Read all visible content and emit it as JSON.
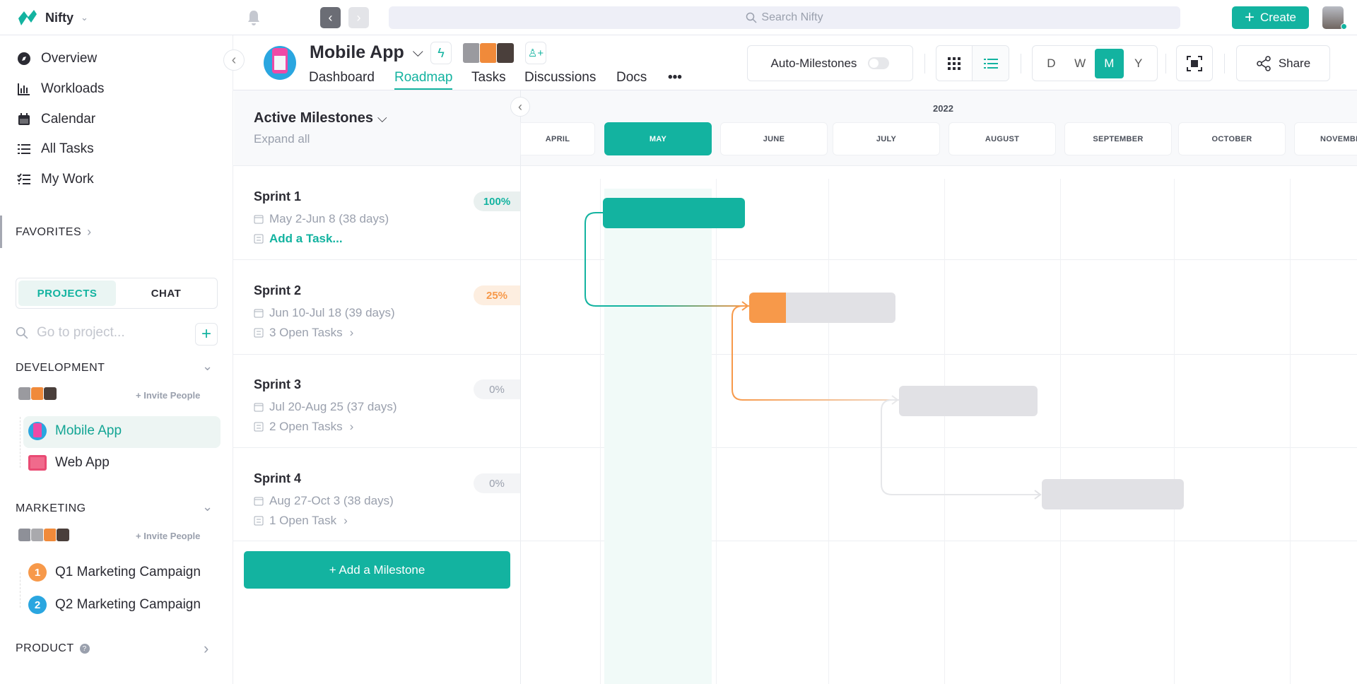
{
  "app": {
    "name": "Nifty",
    "search_placeholder": "Search Nifty",
    "create_label": "Create"
  },
  "colors": {
    "accent": "#13b3a0",
    "orange": "#f7994a",
    "gray_bar": "#e1e1e5",
    "blue": "#2aa6e0"
  },
  "sidebar": {
    "nav": [
      {
        "label": "Overview",
        "icon": "compass-icon"
      },
      {
        "label": "Workloads",
        "icon": "bar-chart-icon"
      },
      {
        "label": "Calendar",
        "icon": "calendar-icon"
      },
      {
        "label": "All Tasks",
        "icon": "list-icon"
      },
      {
        "label": "My Work",
        "icon": "checklist-icon"
      }
    ],
    "favorites": "FAVORITES",
    "tabs": {
      "projects": "PROJECTS",
      "chat": "CHAT"
    },
    "search_placeholder": "Go to project...",
    "groups": [
      {
        "name": "DEVELOPMENT",
        "invite": "+ Invite People",
        "projects": [
          {
            "label": "Mobile App",
            "active": true
          },
          {
            "label": "Web App"
          }
        ]
      },
      {
        "name": "MARKETING",
        "invite": "+ Invite People",
        "projects": [
          {
            "label": "Q1 Marketing Campaign",
            "num": "1"
          },
          {
            "label": "Q2 Marketing Campaign",
            "num": "2"
          }
        ]
      },
      {
        "name": "PRODUCT"
      }
    ]
  },
  "project": {
    "title": "Mobile App",
    "tabs": [
      "Dashboard",
      "Roadmap",
      "Tasks",
      "Discussions",
      "Docs",
      "•••"
    ],
    "active_tab": "Roadmap"
  },
  "toolbar": {
    "auto_milestones": "Auto-Milestones",
    "auto_milestones_on": false,
    "scales": [
      "D",
      "W",
      "M",
      "Y"
    ],
    "active_scale": "M",
    "share": "Share"
  },
  "milestones_panel": {
    "title": "Active Milestones",
    "expand_all": "Expand all",
    "add_milestone": "+ Add a Milestone",
    "items": [
      {
        "name": "Sprint 1",
        "dates": "May 2-Jun 8 (38 days)",
        "tasks": "Add a Task...",
        "progress": "100%",
        "progress_value": 100
      },
      {
        "name": "Sprint 2",
        "dates": "Jun 10-Jul 18 (39 days)",
        "tasks": "3 Open Tasks",
        "progress": "25%",
        "progress_value": 25
      },
      {
        "name": "Sprint 3",
        "dates": "Jul 20-Aug 25 (37 days)",
        "tasks": "2 Open Tasks",
        "progress": "0%",
        "progress_value": 0
      },
      {
        "name": "Sprint 4",
        "dates": "Aug 27-Oct 3 (38 days)",
        "tasks": "1 Open Task",
        "progress": "0%",
        "progress_value": 0
      }
    ]
  },
  "timeline": {
    "year": "2022",
    "months": [
      "APRIL",
      "MAY",
      "JUNE",
      "JULY",
      "AUGUST",
      "SEPTEMBER",
      "OCTOBER",
      "NOVEMBER"
    ],
    "current_month": "MAY"
  }
}
